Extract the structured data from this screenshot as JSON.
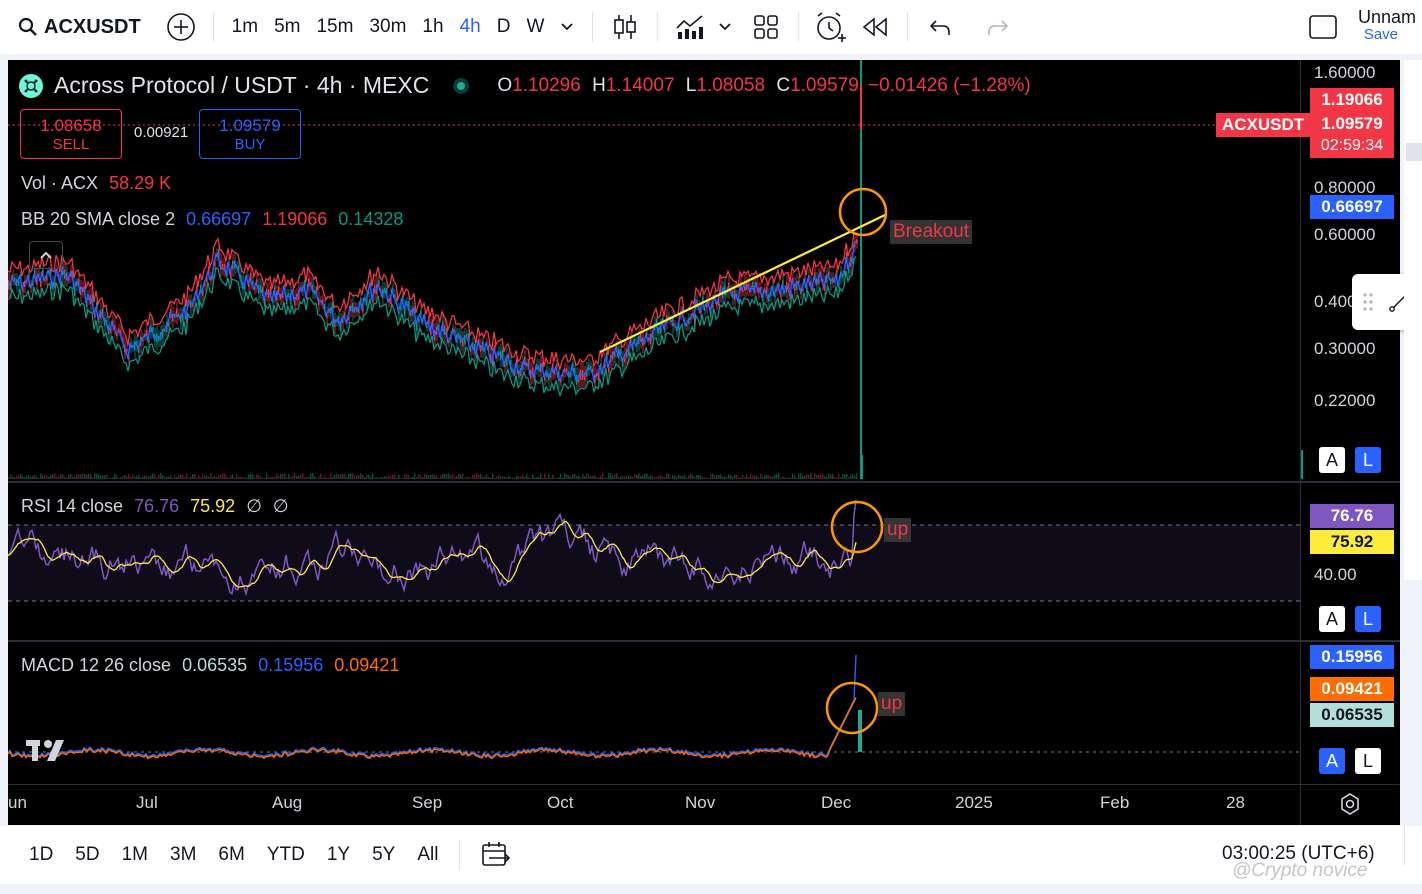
{
  "toolbar": {
    "symbol": "ACXUSDT",
    "intervals": [
      "1m",
      "5m",
      "15m",
      "30m",
      "1h",
      "4h",
      "D",
      "W"
    ],
    "active_interval": "4h",
    "layout_name": "Unnam",
    "save_label": "Save"
  },
  "header": {
    "title": "Across Protocol / USDT · 4h · MEXC",
    "o_label": "O",
    "o": "1.10296",
    "h_label": "H",
    "h": "1.14007",
    "l_label": "L",
    "l": "1.08058",
    "c_label": "C",
    "c": "1.09579",
    "change": "−0.01426 (−1.28%)"
  },
  "trade": {
    "sell_price": "1.08658",
    "sell_label": "SELL",
    "spread": "0.00921",
    "buy_price": "1.09579",
    "buy_label": "BUY"
  },
  "volume": {
    "label": "Vol · ACX",
    "value": "58.29 K"
  },
  "bb": {
    "label": "BB 20 SMA close 2",
    "basis": "0.66697",
    "upper": "1.19066",
    "lower": "0.14328"
  },
  "rsi": {
    "label": "RSI 14 close",
    "value": "76.76",
    "ma": "75.92",
    "extra1": "∅",
    "extra2": "∅",
    "axis_40": "40.00"
  },
  "macd": {
    "label": "MACD 12 26 close",
    "hist": "0.06535",
    "macd": "0.15956",
    "signal": "0.09421"
  },
  "price_axis": {
    "ticks": [
      "1.60000",
      "0.80000",
      "0.60000",
      "0.400",
      "0.30000",
      "0.22000"
    ],
    "upper_band": "1.19066",
    "symbol_tag": "ACXUSDT",
    "last_price": "1.09579",
    "countdown": "02:59:34",
    "basis": "0.66697"
  },
  "annotations": {
    "breakout": "Breakout",
    "rsi_up": "up",
    "macd_up": "up"
  },
  "time_axis": [
    "un",
    "Jul",
    "Aug",
    "Sep",
    "Oct",
    "Nov",
    "Dec",
    "2025",
    "Feb",
    "28"
  ],
  "ranges": [
    "1D",
    "5D",
    "1M",
    "3M",
    "6M",
    "YTD",
    "1Y",
    "5Y",
    "All"
  ],
  "clock": "03:00:25 (UTC+6)",
  "pane_buttons": {
    "a": "A",
    "l": "L"
  },
  "watermark": "@Crypto novice",
  "colors": {
    "up": "#089981",
    "down": "#f23645",
    "accent": "#2962ff",
    "rsi": "#7e57c2",
    "rsi_ma": "#ffeb3b",
    "macd": "#2962ff",
    "signal": "#ff6d00"
  }
}
